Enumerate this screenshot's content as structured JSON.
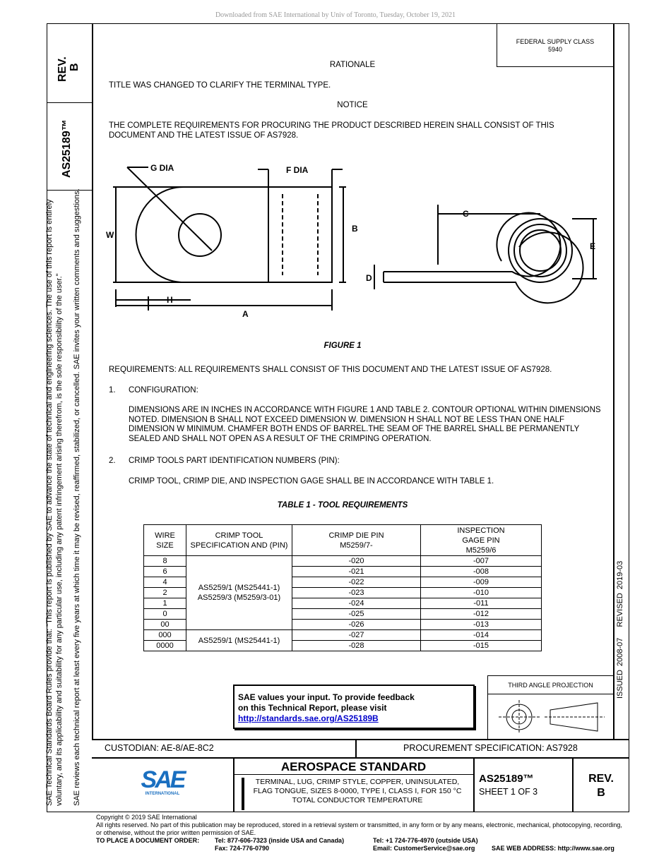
{
  "download_notice": "Downloaded from SAE International by Univ of Toronto, Tuesday, October 19, 2021",
  "side": {
    "rev": "REV.",
    "rev_letter": "B",
    "doc_number": "AS25189™",
    "rules_line1": "SAE Technical Standards Board Rules provide that: \"This report is published by SAE to advance the state of technical and engineering sciences. The use of this report is entirely",
    "rules_line2": "voluntary, and its applicability and suitability for any particular use, including any patent infringement arising therefrom, is the sole responsibility of the user.\"",
    "review_line": "SAE reviews each technical report at least every five years at which time it may be revised, reaffirmed, stabilized, or cancelled. SAE invites your written comments and suggestions.",
    "issued": "ISSUED 2008-07",
    "revised": "REVISED 2019-03"
  },
  "federal": {
    "label": "FEDERAL SUPPLY CLASS",
    "value": "5940"
  },
  "body": {
    "rationale_heading": "RATIONALE",
    "rationale": "TITLE WAS CHANGED TO CLARIFY THE TERMINAL TYPE.",
    "notice_heading": "NOTICE",
    "notice": "THE COMPLETE REQUIREMENTS FOR PROCURING THE PRODUCT DESCRIBED HEREIN SHALL CONSIST OF THIS DOCUMENT AND THE LATEST ISSUE OF AS7928.",
    "figure_labels": {
      "g": "G DIA",
      "f": "F DIA",
      "w": "W",
      "b": "B",
      "c": "C",
      "e": "E",
      "d": "D",
      "h": "H",
      "a": "A"
    },
    "figure_caption": "FIGURE 1",
    "requirements": "REQUIREMENTS: ALL REQUIREMENTS SHALL CONSIST OF THIS DOCUMENT AND THE LATEST ISSUE OF AS7928.",
    "s1_num": "1.",
    "s1_title": "CONFIGURATION:",
    "s1_text": "DIMENSIONS ARE IN INCHES IN ACCORDANCE WITH FIGURE 1 AND TABLE 2. CONTOUR OPTIONAL WITHIN DIMENSIONS NOTED. DIMENSION B SHALL NOT EXCEED DIMENSION W. DIMENSION H SHALL NOT BE LESS THAN ONE HALF DIMENSION W MINIMUM. CHAMFER BOTH ENDS OF BARREL.THE SEAM OF THE BARREL SHALL BE PERMANENTLY SEALED AND SHALL NOT OPEN AS A RESULT OF THE CRIMPING OPERATION.",
    "s2_num": "2.",
    "s2_title": "CRIMP TOOLS PART IDENTIFICATION NUMBERS (PIN):",
    "s2_text": "CRIMP TOOL, CRIMP DIE, AND INSPECTION GAGE SHALL BE IN ACCORDANCE WITH TABLE 1.",
    "table_title": "TABLE 1 - TOOL REQUIREMENTS"
  },
  "table": {
    "headers": [
      "WIRE SIZE",
      "CRIMP TOOL SPECIFICATION AND (PIN)",
      "CRIMP DIE PIN M5259/7-",
      "INSPECTION GAGE PIN M5259/6"
    ],
    "tool_group1": "AS5259/1 (MS25441-1) AS5259/3 (M5259/3-01)",
    "tool_group2": "AS5259/1 (MS25441-1)",
    "rows": [
      [
        "8",
        "-020",
        "-007"
      ],
      [
        "6",
        "-021",
        "-008"
      ],
      [
        "4",
        "-022",
        "-009"
      ],
      [
        "2",
        "-023",
        "-010"
      ],
      [
        "1",
        "-024",
        "-011"
      ],
      [
        "0",
        "-025",
        "-012"
      ],
      [
        "00",
        "-026",
        "-013"
      ],
      [
        "000",
        "-027",
        "-014"
      ],
      [
        "0000",
        "-028",
        "-015"
      ]
    ]
  },
  "feedback": {
    "line1": "SAE values your input. To provide feedback",
    "line2": "on this Technical Report, please visit",
    "link": "http://standards.sae.org/AS25189B",
    "link_color": "#0000cc"
  },
  "projection": {
    "label": "THIRD ANGLE PROJECTION"
  },
  "footer": {
    "custodian": "CUSTODIAN: AE-8/AE-8C2",
    "procurement": "PROCUREMENT SPECIFICATION: AS7928",
    "logo_text": "SAE",
    "logo_sub": "INTERNATIONAL",
    "logo_color": "#1a6fc0",
    "standard": "AEROSPACE STANDARD",
    "title": "TERMINAL, LUG, CRIMP STYLE, COPPER, UNINSULATED, FLAG TONGUE, SIZES 8-0000, TYPE I, CLASS I, FOR 150 °C TOTAL CONDUCTOR TEMPERATURE",
    "doc_number": "AS25189™",
    "sheet": "SHEET 1 OF 3",
    "rev": "REV.",
    "rev_letter": "B"
  },
  "copyright": {
    "line1": "Copyright © 2019 SAE International",
    "line2": "All rights reserved. No part of this publication may be reproduced, stored in a retrieval system or transmitted, in any form or by any means, electronic, mechanical, photocopying, recording, or otherwise, without the prior written permission of SAE.",
    "order_label": "TO PLACE A DOCUMENT ORDER:",
    "tel_us": "Tel: 877-606-7323 (inside USA and Canada)",
    "fax": "Fax: 724-776-0790",
    "tel_intl": "Tel: +1 724-776-4970 (outside USA)",
    "email": "Email: CustomerService@sae.org",
    "web": "SAE WEB ADDRESS: http://www.sae.org"
  }
}
